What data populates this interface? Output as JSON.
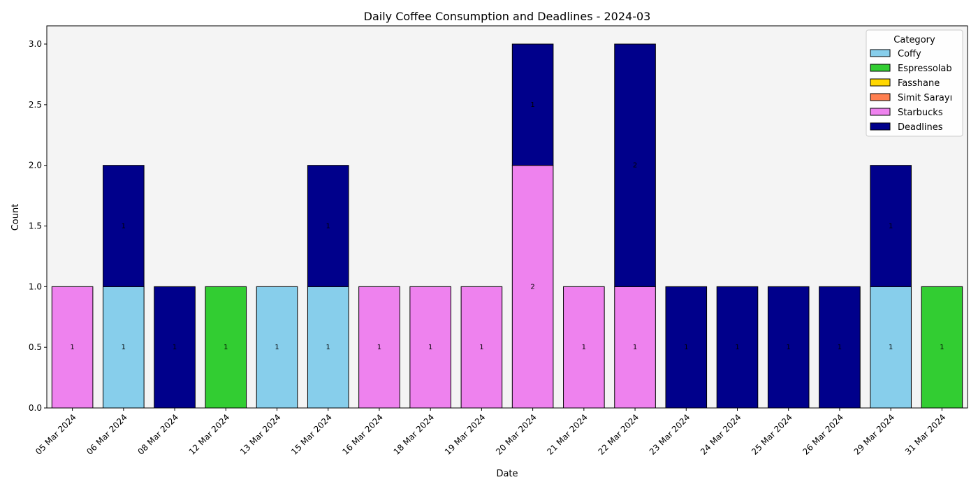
{
  "chart_data": {
    "type": "bar",
    "stacked": true,
    "title": "Daily Coffee Consumption and Deadlines - 2024-03",
    "xlabel": "Date",
    "ylabel": "Count",
    "ylim": [
      0,
      3.15
    ],
    "yticks": [
      "0.0",
      "0.5",
      "1.0",
      "1.5",
      "2.0",
      "2.5",
      "3.0"
    ],
    "categories": [
      "05 Mar 2024",
      "06 Mar 2024",
      "08 Mar 2024",
      "12 Mar 2024",
      "13 Mar 2024",
      "15 Mar 2024",
      "16 Mar 2024",
      "18 Mar 2024",
      "19 Mar 2024",
      "20 Mar 2024",
      "21 Mar 2024",
      "22 Mar 2024",
      "23 Mar 2024",
      "24 Mar 2024",
      "25 Mar 2024",
      "26 Mar 2024",
      "29 Mar 2024",
      "31 Mar 2024"
    ],
    "legend_title": "Category",
    "legend_position": "top-right",
    "series": [
      {
        "name": " Coffy",
        "color": "#87CEEB",
        "values": [
          0,
          1,
          0,
          0,
          1,
          1,
          0,
          0,
          0,
          0,
          0,
          0,
          0,
          0,
          0,
          0,
          1,
          0
        ]
      },
      {
        "name": " Espressolab",
        "color": "#32CD32",
        "values": [
          0,
          0,
          0,
          1,
          0,
          0,
          0,
          0,
          0,
          0,
          0,
          0,
          0,
          0,
          0,
          0,
          0,
          1
        ]
      },
      {
        "name": " Fasshane",
        "color": "#FFD700",
        "values": [
          0,
          0,
          0,
          0,
          0,
          0,
          0,
          0,
          0,
          0,
          0,
          0,
          0,
          0,
          0,
          0,
          0,
          0
        ]
      },
      {
        "name": " Simit Sarayı",
        "color": "#FF7F50",
        "values": [
          0,
          0,
          0,
          0,
          0,
          0,
          0,
          0,
          0,
          0,
          0,
          0,
          0,
          0,
          0,
          0,
          0,
          0
        ]
      },
      {
        "name": " Starbucks",
        "color": "#EE82EE",
        "values": [
          1,
          0,
          0,
          0,
          0,
          0,
          1,
          1,
          1,
          2,
          1,
          1,
          0,
          0,
          0,
          0,
          0,
          0
        ]
      },
      {
        "name": "Deadlines",
        "color": "#00008B",
        "values": [
          0,
          1,
          1,
          0,
          0,
          1,
          0,
          0,
          0,
          1,
          0,
          2,
          1,
          1,
          1,
          1,
          1,
          0
        ]
      }
    ],
    "plot_background": "#F4F4F4",
    "grid": false
  }
}
